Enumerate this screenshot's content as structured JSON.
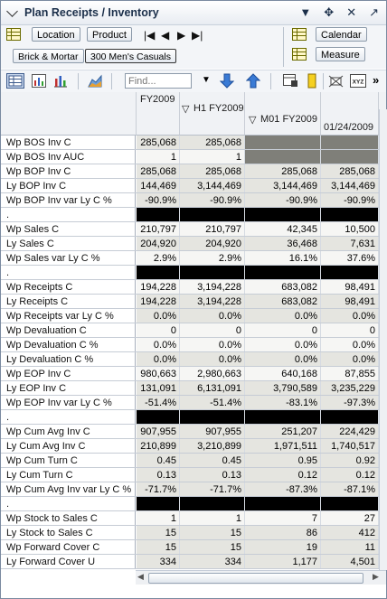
{
  "title": "Plan Receipts / Inventory",
  "toolbar": {
    "location_label": "Location",
    "product_label": "Product",
    "calendar_label": "Calendar",
    "measure_label": "Measure",
    "breadcrumb_channel": "Brick & Mortar",
    "breadcrumb_dept": "300 Men's Casuals"
  },
  "find": {
    "placeholder": "Find..."
  },
  "columns": {
    "c1": "FY2009",
    "c2": "H1 FY2009",
    "c3": "M01 FY2009",
    "c4": "01/24/2009"
  },
  "rows": [
    {
      "label": "Wp BOS Inv C",
      "v": [
        "285,068",
        "285,068",
        "",
        ""
      ],
      "style": "gray",
      "dark34": true
    },
    {
      "label": "Wp BOS Inv AUC",
      "v": [
        "1",
        "1",
        "",
        ""
      ],
      "style": "white",
      "dark34": true
    },
    {
      "label": "Wp BOP Inv C",
      "v": [
        "285,068",
        "285,068",
        "285,068",
        "285,068"
      ],
      "style": "gray"
    },
    {
      "label": "Ly BOP Inv C",
      "v": [
        "144,469",
        "3,144,469",
        "3,144,469",
        "3,144,469"
      ],
      "style": "gray"
    },
    {
      "label": "Wp BOP Inv var Ly C %",
      "v": [
        "-90.9%",
        "-90.9%",
        "-90.9%",
        "-90.9%"
      ],
      "style": "gray"
    },
    {
      "label": ".",
      "v": [
        "",
        "",
        "",
        ""
      ],
      "style": "black"
    },
    {
      "label": "Wp Sales C",
      "v": [
        "210,797",
        "210,797",
        "42,345",
        "10,500"
      ],
      "style": "white"
    },
    {
      "label": "Ly Sales C",
      "v": [
        "204,920",
        "204,920",
        "36,468",
        "7,631"
      ],
      "style": "gray"
    },
    {
      "label": "Wp Sales var Ly C %",
      "v": [
        "2.9%",
        "2.9%",
        "16.1%",
        "37.6%"
      ],
      "style": "white"
    },
    {
      "label": ".",
      "v": [
        "",
        "",
        "",
        ""
      ],
      "style": "black"
    },
    {
      "label": "Wp Receipts C",
      "v": [
        "194,228",
        "3,194,228",
        "683,082",
        "98,491"
      ],
      "style": "white"
    },
    {
      "label": "Ly Receipts C",
      "v": [
        "194,228",
        "3,194,228",
        "683,082",
        "98,491"
      ],
      "style": "gray"
    },
    {
      "label": "Wp Receipts var Ly C %",
      "v": [
        "0.0%",
        "0.0%",
        "0.0%",
        "0.0%"
      ],
      "style": "gray"
    },
    {
      "label": "Wp Devaluation C",
      "v": [
        "0",
        "0",
        "0",
        "0"
      ],
      "style": "white"
    },
    {
      "label": "Wp Devaluation C %",
      "v": [
        "0.0%",
        "0.0%",
        "0.0%",
        "0.0%"
      ],
      "style": "white"
    },
    {
      "label": "Ly Devaluation C %",
      "v": [
        "0.0%",
        "0.0%",
        "0.0%",
        "0.0%"
      ],
      "style": "gray"
    },
    {
      "label": "Wp EOP Inv C",
      "v": [
        "980,663",
        "2,980,663",
        "640,168",
        "87,855"
      ],
      "style": "white"
    },
    {
      "label": "Ly EOP Inv C",
      "v": [
        "131,091",
        "6,131,091",
        "3,790,589",
        "3,235,229"
      ],
      "style": "gray"
    },
    {
      "label": "Wp EOP Inv var Ly C %",
      "v": [
        "-51.4%",
        "-51.4%",
        "-83.1%",
        "-97.3%"
      ],
      "style": "gray"
    },
    {
      "label": ".",
      "v": [
        "",
        "",
        "",
        ""
      ],
      "style": "black"
    },
    {
      "label": "Wp Cum Avg Inv C",
      "v": [
        "907,955",
        "907,955",
        "251,207",
        "224,429"
      ],
      "style": "gray"
    },
    {
      "label": "Ly Cum Avg Inv C",
      "v": [
        "210,899",
        "3,210,899",
        "1,971,511",
        "1,740,517"
      ],
      "style": "gray"
    },
    {
      "label": "Wp Cum Turn C",
      "v": [
        "0.45",
        "0.45",
        "0.95",
        "0.92"
      ],
      "style": "gray"
    },
    {
      "label": "Ly Cum Turn C",
      "v": [
        "0.13",
        "0.13",
        "0.12",
        "0.12"
      ],
      "style": "gray"
    },
    {
      "label": "Wp Cum Avg Inv var Ly C %",
      "v": [
        "-71.7%",
        "-71.7%",
        "-87.3%",
        "-87.1%"
      ],
      "style": "gray"
    },
    {
      "label": ".",
      "v": [
        "",
        "",
        "",
        ""
      ],
      "style": "black"
    },
    {
      "label": "Wp Stock to Sales C",
      "v": [
        "1",
        "1",
        "7",
        "27"
      ],
      "style": "white"
    },
    {
      "label": "Ly Stock to Sales C",
      "v": [
        "15",
        "15",
        "86",
        "412"
      ],
      "style": "gray"
    },
    {
      "label": "Wp Forward Cover C",
      "v": [
        "15",
        "15",
        "19",
        "11"
      ],
      "style": "gray"
    },
    {
      "label": "Ly Forward Cover U",
      "v": [
        "334",
        "334",
        "1,177",
        "4,501"
      ],
      "style": "gray"
    }
  ],
  "icons": [
    "collapse-icon",
    "dropdown-icon",
    "move-icon",
    "close-icon",
    "expand-icon",
    "location-icon",
    "calendar-icon",
    "measure-icon",
    "grid-view-icon",
    "chart-view-icon",
    "bar-chart-icon",
    "area-chart-icon",
    "arrow-down-icon",
    "arrow-up-icon",
    "export-icon",
    "highlight-icon",
    "settings-icon",
    "xyz-icon",
    "more-icon",
    "first-page-icon",
    "previous-icon",
    "next-icon",
    "last-page-icon"
  ]
}
